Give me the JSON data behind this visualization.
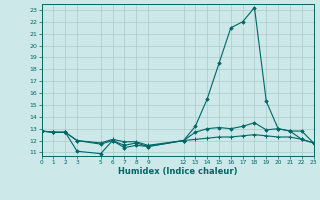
{
  "xlabel": "Humidex (Indice chaleur)",
  "bg_color": "#cce8e8",
  "grid_color": "#aacccc",
  "line_color": "#006666",
  "xlim": [
    0,
    23
  ],
  "ylim": [
    10.7,
    23.5
  ],
  "yticks": [
    11,
    12,
    13,
    14,
    15,
    16,
    17,
    18,
    19,
    20,
    21,
    22,
    23
  ],
  "xtick_positions": [
    0,
    1,
    2,
    3,
    5,
    6,
    7,
    8,
    9,
    12,
    13,
    14,
    15,
    16,
    17,
    18,
    19,
    20,
    21,
    22,
    23
  ],
  "xtick_labels": [
    "0",
    "1",
    "2",
    "3",
    "5",
    "6",
    "7",
    "8",
    "9",
    "12",
    "13",
    "14",
    "15",
    "16",
    "17",
    "18",
    "19",
    "20",
    "21",
    "22",
    "23"
  ],
  "s1_x": [
    0,
    1,
    2,
    3,
    5,
    6,
    7,
    8,
    9,
    12,
    13,
    14,
    15,
    16,
    17,
    18,
    19,
    20,
    21,
    22,
    23
  ],
  "s1_y": [
    12.8,
    12.7,
    12.7,
    11.1,
    10.9,
    12.0,
    11.4,
    11.6,
    11.5,
    12.0,
    13.2,
    15.5,
    18.5,
    21.5,
    22.0,
    23.2,
    15.3,
    13.0,
    12.8,
    12.1,
    11.8
  ],
  "s2_x": [
    0,
    1,
    2,
    3,
    5,
    6,
    7,
    8,
    9,
    12,
    13,
    14,
    15,
    16,
    17,
    18,
    19,
    20,
    21,
    22,
    23
  ],
  "s2_y": [
    12.8,
    12.7,
    12.7,
    12.0,
    11.7,
    12.0,
    11.6,
    11.8,
    11.5,
    12.0,
    12.7,
    13.0,
    13.1,
    13.0,
    13.2,
    13.5,
    12.9,
    13.0,
    12.8,
    12.8,
    11.8
  ],
  "s3_x": [
    0,
    1,
    2,
    3,
    5,
    6,
    7,
    8,
    9,
    12,
    13,
    14,
    15,
    16,
    17,
    18,
    19,
    20,
    21,
    22,
    23
  ],
  "s3_y": [
    12.8,
    12.7,
    12.7,
    12.0,
    11.8,
    12.1,
    11.9,
    11.9,
    11.6,
    12.0,
    12.1,
    12.2,
    12.3,
    12.3,
    12.4,
    12.5,
    12.4,
    12.3,
    12.3,
    12.1,
    11.8
  ]
}
